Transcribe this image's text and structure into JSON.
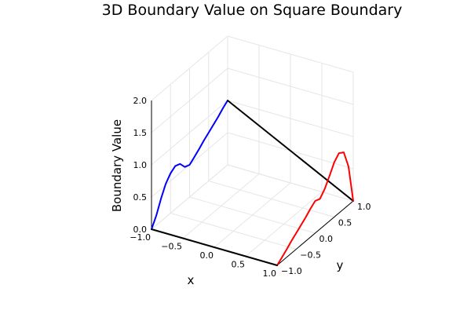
{
  "chart_data": {
    "type": "line",
    "title": "3D Boundary Value on Square Boundary",
    "xlabel": "x",
    "ylabel": "y",
    "zlabel": "Boundary Value",
    "xlim": [
      -1.0,
      1.0
    ],
    "ylim": [
      -1.0,
      1.0
    ],
    "zlim": [
      0.0,
      2.0
    ],
    "x_ticks": [
      "−1.0",
      "−0.5",
      "0.0",
      "0.5",
      "1.0"
    ],
    "y_ticks": [
      "−1.0",
      "−0.5",
      "0.0",
      "0.5",
      "1.0"
    ],
    "z_ticks": [
      "0.0",
      "0.5",
      "1.0",
      "1.5",
      "2.0"
    ],
    "grid": true,
    "legend": false,
    "series": [
      {
        "color": "#0000ff",
        "edge": "x = -1",
        "x": [
          -1.0,
          -1.0,
          -1.0,
          -1.0,
          -1.0,
          -1.0,
          -1.0,
          -1.0,
          -1.0,
          -1.0,
          -1.0,
          -1.0,
          -1.0,
          -1.0,
          -1.0,
          -1.0,
          -1.0
        ],
        "y": [
          -1.0,
          -0.875,
          -0.75,
          -0.625,
          -0.5,
          -0.375,
          -0.25,
          -0.125,
          0.0,
          0.125,
          0.25,
          0.375,
          0.5,
          0.625,
          0.75,
          0.875,
          1.0
        ],
        "z": [
          0.0,
          0.15,
          0.35,
          0.52,
          0.62,
          0.67,
          0.64,
          0.53,
          0.5,
          0.56,
          0.62,
          0.69,
          0.75,
          0.81,
          0.87,
          0.94,
          1.0
        ]
      },
      {
        "color": "#000000",
        "edge": "y = 1",
        "x": [
          -1.0,
          1.0
        ],
        "y": [
          1.0,
          1.0
        ],
        "z": [
          1.0,
          0.0
        ]
      },
      {
        "color": "#ff0000",
        "edge": "x = 1",
        "x": [
          1.0,
          1.0,
          1.0,
          1.0,
          1.0,
          1.0,
          1.0,
          1.0,
          1.0,
          1.0,
          1.0,
          1.0,
          1.0,
          1.0,
          1.0,
          1.0,
          1.0
        ],
        "y": [
          -1.0,
          -0.875,
          -0.75,
          -0.625,
          -0.5,
          -0.375,
          -0.25,
          -0.125,
          0.0,
          0.125,
          0.25,
          0.375,
          0.5,
          0.625,
          0.75,
          0.875,
          1.0
        ],
        "z": [
          0.0,
          0.06,
          0.12,
          0.19,
          0.25,
          0.31,
          0.37,
          0.44,
          0.5,
          0.47,
          0.56,
          0.7,
          0.85,
          0.93,
          0.88,
          0.6,
          0.0
        ]
      },
      {
        "color": "#000000",
        "edge": "y = -1",
        "x": [
          -1.0,
          1.0
        ],
        "y": [
          -1.0,
          -1.0
        ],
        "z": [
          0.0,
          0.0
        ]
      }
    ]
  }
}
